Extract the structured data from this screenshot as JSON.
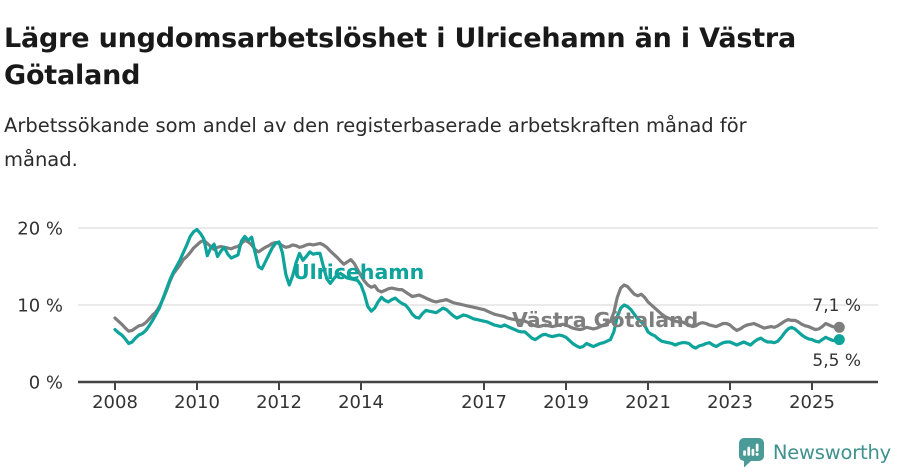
{
  "header": {
    "title": "Lägre ungdomsarbetslöshet i Ulricehamn än i Västra Götaland",
    "title_lines": [
      "Lägre ungdomsarbetslöshet i Ulricehamn än i Västra",
      "Götaland"
    ],
    "subtitle": "Arbetssökande som andel av den registerbaserade arbetskraften månad för månad.",
    "subtitle_lines": [
      "Arbetssökande som andel av den registerbaserade arbetskraften månad för",
      "månad."
    ]
  },
  "chart_data": {
    "type": "line",
    "title": "Lägre ungdomsarbetslöshet i Ulricehamn än i Västra Götaland",
    "subtitle": "Arbetssökande som andel av den registerbaserade arbetskraften månad för månad.",
    "xlabel": "",
    "ylabel": "",
    "frequency": "monthly",
    "x_start": "2008-01",
    "x_end": "2025-09",
    "ylim": [
      0,
      20
    ],
    "grid": "horizontal",
    "legend_position": "inline-labels",
    "gridlines": [
      10,
      20
    ],
    "y_ticks": [
      {
        "value": 0,
        "label": "0 %"
      },
      {
        "value": 10,
        "label": "10 %"
      },
      {
        "value": 20,
        "label": "20 %"
      }
    ],
    "x_ticks": [
      {
        "value": 2008,
        "label": "2008"
      },
      {
        "value": 2010,
        "label": "2010"
      },
      {
        "value": 2012,
        "label": "2012"
      },
      {
        "value": 2014,
        "label": "2014"
      },
      {
        "value": 2017,
        "label": "2017"
      },
      {
        "value": 2019,
        "label": "2019"
      },
      {
        "value": 2021,
        "label": "2021"
      },
      {
        "value": 2023,
        "label": "2023"
      },
      {
        "value": 2025,
        "label": "2025"
      }
    ],
    "series": [
      {
        "name": "Västra Götaland",
        "color": "#7e7e7e",
        "end_label": "7,1 %",
        "end_value": 7.1,
        "values": [
          8.3,
          7.9,
          7.5,
          7.0,
          6.6,
          6.7,
          7.0,
          7.3,
          7.4,
          7.7,
          8.2,
          8.7,
          9.1,
          9.8,
          10.7,
          11.8,
          13.0,
          14.0,
          14.6,
          15.2,
          15.9,
          16.3,
          16.8,
          17.4,
          17.8,
          18.2,
          18.4,
          18.0,
          17.6,
          17.2,
          17.5,
          17.6,
          17.5,
          17.4,
          17.3,
          17.5,
          17.6,
          18.0,
          18.4,
          18.2,
          17.8,
          17.2,
          16.9,
          17.2,
          17.5,
          17.7,
          18.0,
          18.1,
          18.0,
          17.7,
          17.5,
          17.6,
          17.8,
          17.7,
          17.5,
          17.6,
          17.8,
          17.9,
          17.8,
          17.9,
          18.0,
          17.8,
          17.5,
          17.0,
          16.6,
          16.2,
          15.7,
          15.3,
          15.6,
          15.9,
          15.4,
          14.6,
          13.8,
          13.1,
          12.6,
          12.3,
          12.5,
          11.9,
          11.7,
          11.9,
          12.1,
          12.2,
          12.1,
          12.0,
          12.0,
          11.7,
          11.4,
          11.1,
          11.2,
          11.3,
          11.1,
          10.9,
          10.7,
          10.5,
          10.4,
          10.5,
          10.6,
          10.7,
          10.5,
          10.3,
          10.2,
          10.1,
          10.0,
          9.9,
          9.8,
          9.7,
          9.6,
          9.5,
          9.4,
          9.2,
          9.0,
          8.8,
          8.7,
          8.6,
          8.5,
          8.3,
          8.2,
          8.1,
          8.0,
          8.0,
          7.9,
          7.7,
          7.5,
          7.3,
          7.2,
          7.3,
          7.4,
          7.3,
          7.2,
          7.3,
          7.4,
          7.5,
          7.4,
          7.2,
          7.0,
          6.9,
          6.8,
          6.9,
          7.1,
          7.0,
          6.9,
          7.0,
          7.2,
          7.4,
          7.6,
          7.9,
          9.0,
          11.0,
          12.2,
          12.6,
          12.4,
          11.9,
          11.4,
          11.2,
          11.4,
          11.0,
          10.4,
          10.0,
          9.6,
          9.2,
          8.8,
          8.5,
          8.3,
          8.1,
          7.9,
          7.8,
          7.8,
          7.6,
          7.4,
          7.2,
          7.3,
          7.6,
          7.7,
          7.6,
          7.4,
          7.3,
          7.2,
          7.4,
          7.6,
          7.6,
          7.4,
          7.0,
          6.7,
          6.9,
          7.2,
          7.4,
          7.5,
          7.6,
          7.4,
          7.2,
          7.0,
          7.1,
          7.2,
          7.1,
          7.3,
          7.6,
          7.9,
          8.1,
          8.0,
          8.0,
          7.8,
          7.5,
          7.3,
          7.2,
          7.0,
          6.8,
          6.9,
          7.2,
          7.6,
          7.4,
          7.2,
          7.1,
          7.1
        ]
      },
      {
        "name": "Ulricehamn",
        "color": "#0ea39b",
        "end_label": "5,5 %",
        "end_value": 5.5,
        "values": [
          6.8,
          6.4,
          6.1,
          5.6,
          5.0,
          5.2,
          5.7,
          6.1,
          6.3,
          6.7,
          7.3,
          8.0,
          8.8,
          9.6,
          10.8,
          12.0,
          13.2,
          14.2,
          15.0,
          15.8,
          16.8,
          17.8,
          18.9,
          19.5,
          19.8,
          19.3,
          18.6,
          16.4,
          17.4,
          17.9,
          16.3,
          17.0,
          17.5,
          16.6,
          16.1,
          16.3,
          16.5,
          18.3,
          18.9,
          18.4,
          18.8,
          16.8,
          15.0,
          14.7,
          15.6,
          16.5,
          17.4,
          18.0,
          18.2,
          16.8,
          14.0,
          12.6,
          13.8,
          15.5,
          16.7,
          15.8,
          16.3,
          16.9,
          16.6,
          16.7,
          16.7,
          15.0,
          13.4,
          12.8,
          13.4,
          13.9,
          14.1,
          13.8,
          13.5,
          13.4,
          13.3,
          13.2,
          12.6,
          11.4,
          9.8,
          9.2,
          9.6,
          10.4,
          11.0,
          10.6,
          10.4,
          10.7,
          10.9,
          10.5,
          10.2,
          10.0,
          9.5,
          8.8,
          8.4,
          8.3,
          8.9,
          9.3,
          9.2,
          9.1,
          9.0,
          9.3,
          9.6,
          9.4,
          9.0,
          8.6,
          8.3,
          8.5,
          8.7,
          8.6,
          8.4,
          8.2,
          8.1,
          8.0,
          7.9,
          7.8,
          7.6,
          7.4,
          7.3,
          7.2,
          7.4,
          7.2,
          7.0,
          6.8,
          6.6,
          6.5,
          6.5,
          6.1,
          5.7,
          5.5,
          5.8,
          6.1,
          6.2,
          6.0,
          5.9,
          6.0,
          6.1,
          6.0,
          5.8,
          5.4,
          5.0,
          4.7,
          4.5,
          4.6,
          5.0,
          4.8,
          4.6,
          4.8,
          5.0,
          5.1,
          5.3,
          5.5,
          6.5,
          8.5,
          9.6,
          10.0,
          9.8,
          9.4,
          8.8,
          8.2,
          7.8,
          7.4,
          6.5,
          6.2,
          6.0,
          5.6,
          5.3,
          5.2,
          5.1,
          5.0,
          4.8,
          5.0,
          5.1,
          5.1,
          5.0,
          4.6,
          4.4,
          4.7,
          4.8,
          5.0,
          5.1,
          4.8,
          4.6,
          4.9,
          5.1,
          5.2,
          5.2,
          5.0,
          4.8,
          5.0,
          5.2,
          5.0,
          4.8,
          5.2,
          5.5,
          5.7,
          5.4,
          5.2,
          5.2,
          5.1,
          5.3,
          5.8,
          6.4,
          6.9,
          7.1,
          6.9,
          6.5,
          6.1,
          5.8,
          5.6,
          5.5,
          5.3,
          5.2,
          5.5,
          5.8,
          5.6,
          5.4,
          5.4,
          5.5
        ]
      }
    ]
  },
  "footer": {
    "brand": "Newsworthy"
  }
}
